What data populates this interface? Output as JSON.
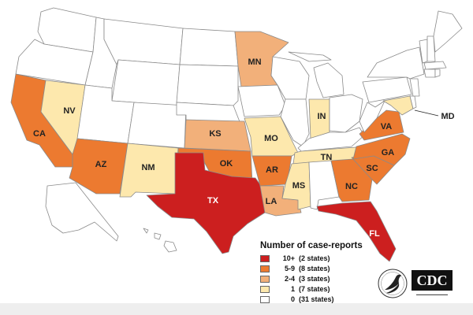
{
  "legend": {
    "title": "Number of case-reports",
    "items": [
      {
        "bin": "10+",
        "count_text": "(2 states)",
        "color": "#cc1f1f"
      },
      {
        "bin": "5-9",
        "count_text": "(8 states)",
        "color": "#ec7a30"
      },
      {
        "bin": "2-4",
        "count_text": "(3 states)",
        "color": "#f2b07a"
      },
      {
        "bin": "1",
        "count_text": "(7 states)",
        "color": "#fde8ad"
      },
      {
        "bin": "0",
        "count_text": "(31 states)",
        "color": "#ffffff"
      }
    ]
  },
  "states": [
    {
      "code": "TX",
      "bin": "10+"
    },
    {
      "code": "FL",
      "bin": "10+"
    },
    {
      "code": "CA",
      "bin": "5-9"
    },
    {
      "code": "AZ",
      "bin": "5-9"
    },
    {
      "code": "OK",
      "bin": "5-9"
    },
    {
      "code": "AR",
      "bin": "5-9"
    },
    {
      "code": "GA",
      "bin": "5-9"
    },
    {
      "code": "SC",
      "bin": "5-9"
    },
    {
      "code": "NC",
      "bin": "5-9"
    },
    {
      "code": "VA",
      "bin": "5-9"
    },
    {
      "code": "MN",
      "bin": "2-4"
    },
    {
      "code": "KS",
      "bin": "2-4"
    },
    {
      "code": "LA",
      "bin": "2-4"
    },
    {
      "code": "NV",
      "bin": "1"
    },
    {
      "code": "NM",
      "bin": "1"
    },
    {
      "code": "MO",
      "bin": "1"
    },
    {
      "code": "IN",
      "bin": "1"
    },
    {
      "code": "TN",
      "bin": "1"
    },
    {
      "code": "MS",
      "bin": "1"
    },
    {
      "code": "MD",
      "bin": "1"
    }
  ],
  "logos": {
    "agency": "CDC"
  }
}
